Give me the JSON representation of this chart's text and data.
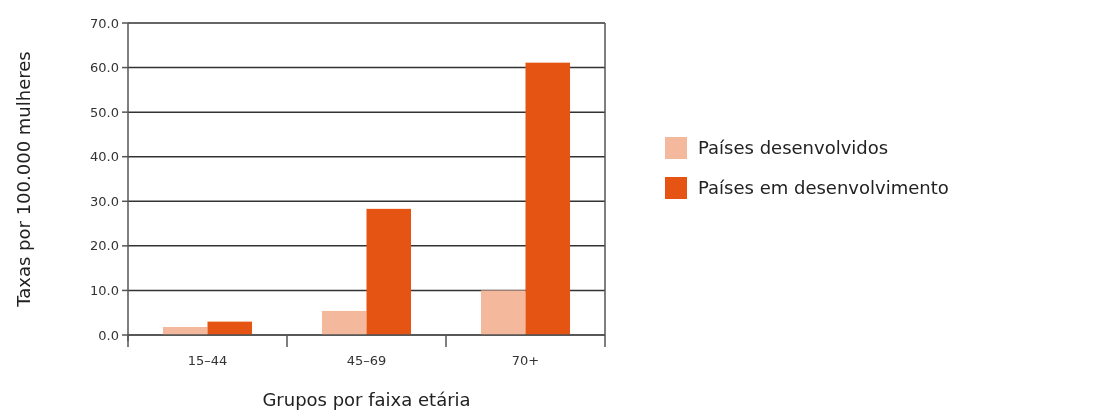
{
  "chart_data": {
    "type": "bar",
    "xlabel": "Grupos por faixa etária",
    "ylabel": "Taxas por 100.000 mulheres",
    "categories": [
      "15–44",
      "45–69",
      "70+"
    ],
    "series": [
      {
        "name": "Países desenvolvidos",
        "color": "#f4b99c",
        "values": [
          1.8,
          5.4,
          10.0
        ]
      },
      {
        "name": "Países em desenvolvimento",
        "color": "#e65414",
        "values": [
          3.0,
          28.3,
          61.1
        ]
      }
    ],
    "ylim": [
      0,
      70
    ],
    "yticks": [
      {
        "value": 0,
        "label": "0.0"
      },
      {
        "value": 10,
        "label": "10.0"
      },
      {
        "value": 20,
        "label": "20.0"
      },
      {
        "value": 30,
        "label": "30.0"
      },
      {
        "value": 40,
        "label": "40.0"
      },
      {
        "value": 50,
        "label": "50.0"
      },
      {
        "value": 60,
        "label": "60.0"
      },
      {
        "value": 70,
        "label": "70.0"
      }
    ],
    "grid": "y",
    "legend": "right"
  }
}
